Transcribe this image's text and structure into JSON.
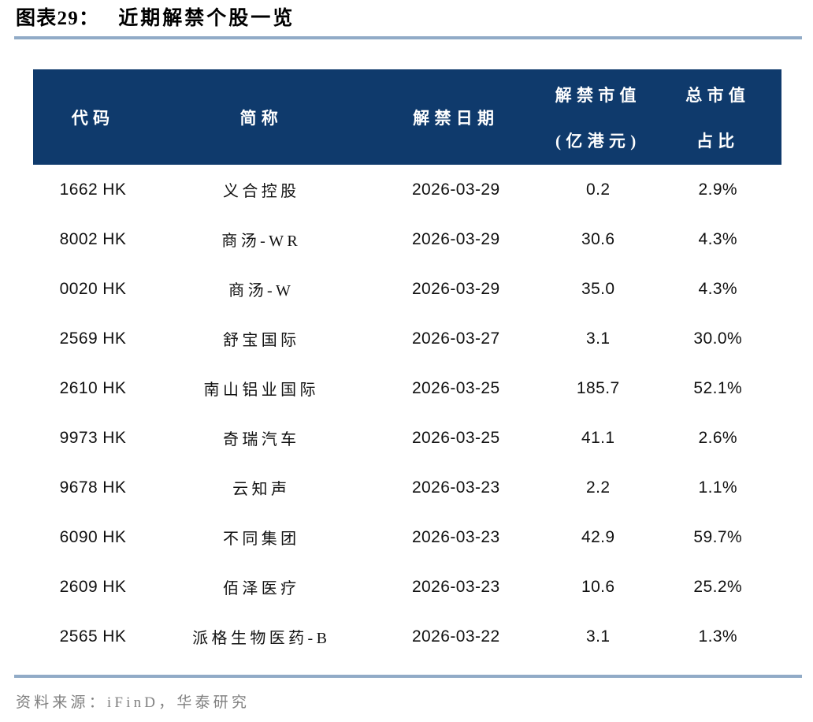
{
  "title": {
    "label": "图表29：",
    "text": "近期解禁个股一览"
  },
  "table": {
    "headers": {
      "code": "代码",
      "name": "简称",
      "date": "解禁日期",
      "value_line1": "解禁市值",
      "value_line2": "(亿港元)",
      "pct_line1": "总市值",
      "pct_line2": "占比"
    },
    "rows": [
      {
        "code": "1662 HK",
        "name": "义合控股",
        "date": "2026-03-29",
        "value": "0.2",
        "pct": "2.9%"
      },
      {
        "code": "8002 HK",
        "name": "商汤-WR",
        "date": "2026-03-29",
        "value": "30.6",
        "pct": "4.3%"
      },
      {
        "code": "0020 HK",
        "name": "商汤-W",
        "date": "2026-03-29",
        "value": "35.0",
        "pct": "4.3%"
      },
      {
        "code": "2569 HK",
        "name": "舒宝国际",
        "date": "2026-03-27",
        "value": "3.1",
        "pct": "30.0%"
      },
      {
        "code": "2610 HK",
        "name": "南山铝业国际",
        "date": "2026-03-25",
        "value": "185.7",
        "pct": "52.1%"
      },
      {
        "code": "9973 HK",
        "name": "奇瑞汽车",
        "date": "2026-03-25",
        "value": "41.1",
        "pct": "2.6%"
      },
      {
        "code": "9678 HK",
        "name": "云知声",
        "date": "2026-03-23",
        "value": "2.2",
        "pct": "1.1%"
      },
      {
        "code": "6090 HK",
        "name": "不同集团",
        "date": "2026-03-23",
        "value": "42.9",
        "pct": "59.7%"
      },
      {
        "code": "2609 HK",
        "name": "佰泽医疗",
        "date": "2026-03-23",
        "value": "10.6",
        "pct": "25.2%"
      },
      {
        "code": "2565 HK",
        "name": "派格生物医药-B",
        "date": "2026-03-22",
        "value": "3.1",
        "pct": "1.3%"
      }
    ]
  },
  "footer": {
    "source": "资料来源：iFinD，华泰研究"
  },
  "colors": {
    "header_bg": "#0f3a6c",
    "divider": "#91abc7",
    "source_text": "#818181"
  }
}
